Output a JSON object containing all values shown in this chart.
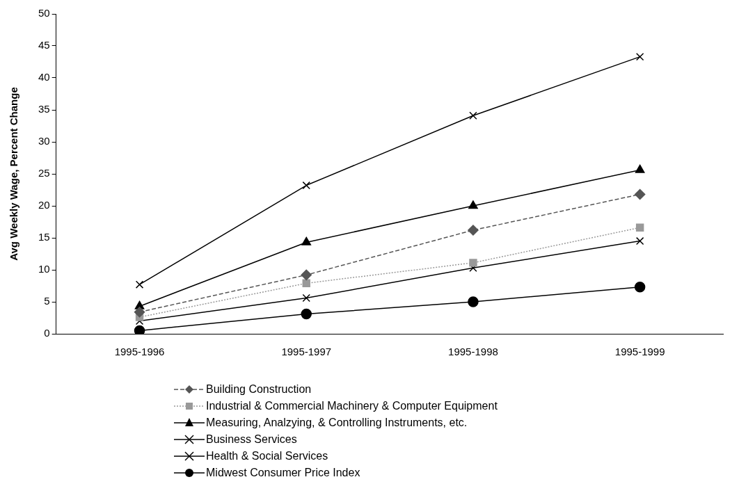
{
  "chart_data": {
    "type": "line",
    "ylabel": "Avg Weekly Wage, Percent Change",
    "categories": [
      "1995-1996",
      "1995-1997",
      "1995-1998",
      "1995-1999"
    ],
    "series": [
      {
        "name": "Building Construction",
        "color": "#555555",
        "marker": "diamond",
        "line_style": "dashed",
        "values": [
          3.4,
          9.2,
          16.2,
          21.8
        ]
      },
      {
        "name": "Industrial & Commercial Machinery & Computer Equipment",
        "color": "#999999",
        "marker": "square",
        "line_style": "dotted",
        "values": [
          2.6,
          7.9,
          11.1,
          16.6
        ]
      },
      {
        "name": "Measuring, Analzying, & Controlling Instruments, etc.",
        "color": "#000000",
        "marker": "triangle",
        "line_style": "solid",
        "values": [
          4.3,
          14.3,
          20.0,
          25.6
        ]
      },
      {
        "name": "Business Services",
        "color": "#000000",
        "marker": "cross",
        "line_style": "solid",
        "values": [
          7.7,
          23.2,
          34.1,
          43.3
        ]
      },
      {
        "name": "Health & Social Services",
        "color": "#000000",
        "marker": "cross",
        "line_style": "solid",
        "values": [
          2.0,
          5.6,
          10.3,
          14.5
        ]
      },
      {
        "name": "Midwest Consumer Price Index",
        "color": "#000000",
        "marker": "circle",
        "line_style": "solid",
        "values": [
          0.5,
          3.1,
          5.0,
          7.3
        ]
      }
    ],
    "ylim": [
      0,
      50
    ],
    "yticks": [
      0,
      5,
      10,
      15,
      20,
      25,
      30,
      35,
      40,
      45,
      50
    ],
    "grid": false,
    "legend": "bottom"
  }
}
